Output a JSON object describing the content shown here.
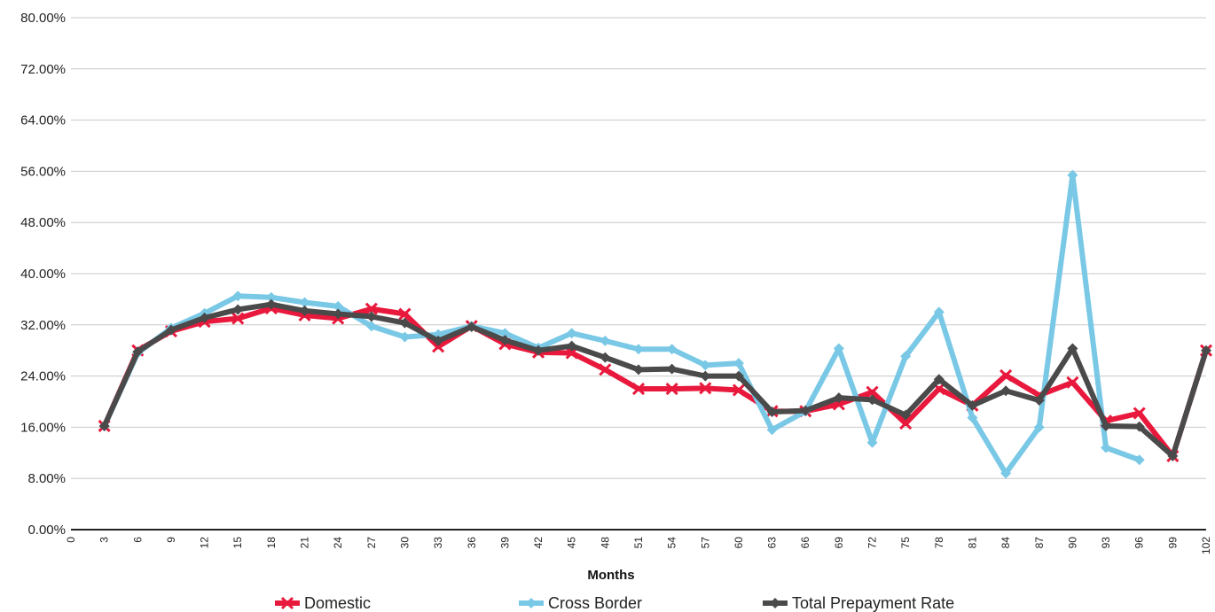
{
  "chart_data": {
    "type": "line",
    "title": "",
    "xlabel": "Months",
    "ylabel": "",
    "ylim": [
      0,
      80
    ],
    "y_ticks": [
      0,
      8,
      16,
      24,
      32,
      40,
      48,
      56,
      64,
      72,
      80
    ],
    "y_tick_labels": [
      "0.00%",
      "8.00%",
      "16.00%",
      "24.00%",
      "32.00%",
      "40.00%",
      "48.00%",
      "56.00%",
      "64.00%",
      "72.00%",
      "80.00%"
    ],
    "x_tick_labels": [
      "0",
      "3",
      "6",
      "9",
      "12",
      "15",
      "18",
      "21",
      "24",
      "27",
      "30",
      "33",
      "36",
      "39",
      "42",
      "45",
      "48",
      "51",
      "54",
      "57",
      "60",
      "63",
      "66",
      "69",
      "72",
      "75",
      "78",
      "81",
      "84",
      "87",
      "90",
      "93",
      "96",
      "99",
      "102"
    ],
    "x": [
      3,
      6,
      9,
      12,
      15,
      18,
      21,
      24,
      27,
      30,
      33,
      36,
      39,
      42,
      45,
      48,
      51,
      54,
      57,
      60,
      63,
      66,
      69,
      72,
      75,
      78,
      81,
      84,
      87,
      90,
      93,
      96,
      99,
      102
    ],
    "grid": true,
    "legend_position": "bottom",
    "series": [
      {
        "name": "Domestic",
        "color": "#e8193c",
        "marker": "x",
        "values": [
          16.2,
          28.0,
          31.0,
          32.5,
          33.0,
          34.6,
          33.5,
          33.0,
          34.5,
          33.7,
          28.6,
          31.8,
          29.0,
          27.7,
          27.6,
          25.0,
          22.0,
          22.0,
          22.1,
          21.8,
          18.5,
          18.5,
          19.6,
          21.5,
          16.6,
          22.0,
          19.4,
          24.1,
          21.0,
          23.0,
          17.0,
          18.2,
          11.5,
          28.0
        ]
      },
      {
        "name": "Cross Border",
        "color": "#79c8e6",
        "marker": "diamond",
        "values": [
          16.2,
          27.6,
          31.5,
          33.8,
          36.5,
          36.3,
          35.5,
          34.9,
          31.8,
          30.1,
          30.5,
          31.8,
          30.7,
          28.4,
          30.7,
          29.5,
          28.2,
          28.2,
          25.7,
          26.0,
          15.6,
          18.5,
          28.3,
          13.6,
          27.1,
          34.0,
          17.5,
          8.8,
          16.0,
          55.4,
          12.8,
          10.9,
          null,
          null
        ]
      },
      {
        "name": "Total Prepayment Rate",
        "color": "#4a4a4a",
        "marker": "diamond",
        "values": [
          16.2,
          27.8,
          31.2,
          33.1,
          34.4,
          35.2,
          34.2,
          33.7,
          33.3,
          32.3,
          29.5,
          31.7,
          29.6,
          28.0,
          28.7,
          26.9,
          25.0,
          25.1,
          24.0,
          24.0,
          18.4,
          18.6,
          20.6,
          20.3,
          17.9,
          23.5,
          19.4,
          21.7,
          20.2,
          28.3,
          16.2,
          16.1,
          11.5,
          28.0
        ]
      }
    ]
  }
}
